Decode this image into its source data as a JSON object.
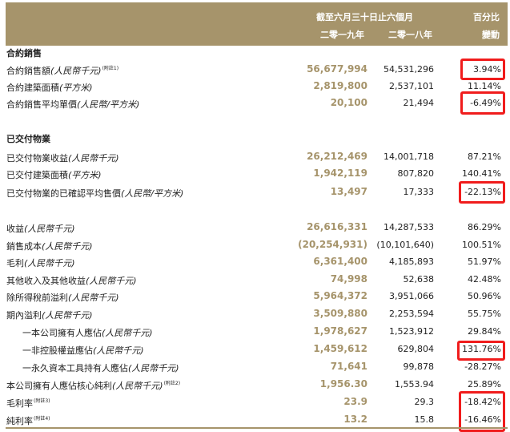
{
  "header": {
    "period": "截至六月三十日止六個月",
    "pct_top": "百分比",
    "year1": "二零一九年",
    "year2": "二零一八年",
    "pct_bottom": "變動"
  },
  "sections": [
    {
      "title": "合約銷售",
      "rows": [
        {
          "label": "合約銷售額",
          "unit": "(人民幣千元)",
          "note": "(附註1)",
          "v1": "56,677,994",
          "v2": "54,531,296",
          "pct": "3.94%"
        },
        {
          "label": "合約建築面積",
          "unit": "(平方米)",
          "note": "",
          "v1": "2,819,800",
          "v2": "2,537,101",
          "pct": "11.14%"
        },
        {
          "label": "合約銷售平均單價",
          "unit": "(人民幣/平方米)",
          "note": "",
          "v1": "20,100",
          "v2": "21,494",
          "pct": "-6.49%"
        }
      ]
    },
    {
      "title": "已交付物業",
      "rows": [
        {
          "label": "已交付物業收益",
          "unit": "(人民幣千元)",
          "note": "",
          "v1": "26,212,469",
          "v2": "14,001,718",
          "pct": "87.21%"
        },
        {
          "label": "已交付建築面積",
          "unit": "(平方米)",
          "note": "",
          "v1": "1,942,119",
          "v2": "807,820",
          "pct": "140.41%"
        },
        {
          "label": "已交付物業的已確認平均售價",
          "unit": "(人民幣/平方米)",
          "note": "",
          "v1": "13,497",
          "v2": "17,333",
          "pct": "-22.13%"
        }
      ]
    },
    {
      "title": "",
      "rows": [
        {
          "label": "收益",
          "unit": "(人民幣千元)",
          "note": "",
          "v1": "26,616,331",
          "v2": "14,287,533",
          "pct": "86.29%"
        },
        {
          "label": "銷售成本",
          "unit": "(人民幣千元)",
          "note": "",
          "v1": "(20,254,931)",
          "v2": "(10,101,640)",
          "pct": "100.51%"
        },
        {
          "label": "毛利",
          "unit": "(人民幣千元)",
          "note": "",
          "v1": "6,361,400",
          "v2": "4,185,893",
          "pct": "51.97%"
        },
        {
          "label": "其他收入及其他收益",
          "unit": "(人民幣千元)",
          "note": "",
          "v1": "74,998",
          "v2": "52,638",
          "pct": "42.48%"
        },
        {
          "label": "除所得稅前溢利",
          "unit": "(人民幣千元)",
          "note": "",
          "v1": "5,964,372",
          "v2": "3,951,066",
          "pct": "50.96%"
        },
        {
          "label": "期內溢利",
          "unit": "(人民幣千元)",
          "note": "",
          "v1": "3,509,880",
          "v2": "2,253,594",
          "pct": "55.75%"
        },
        {
          "label": "一本公司擁有人應佔",
          "unit": "(人民幣千元)",
          "note": "",
          "v1": "1,978,627",
          "v2": "1,523,912",
          "pct": "29.84%"
        },
        {
          "label": "一非控股權益應佔",
          "unit": "(人民幣千元)",
          "note": "",
          "v1": "1,459,612",
          "v2": "629,804",
          "pct": "131.76%"
        },
        {
          "label": "一永久資本工具持有人應佔",
          "unit": "(人民幣千元)",
          "note": "",
          "v1": "71,641",
          "v2": "99,878",
          "pct": "-28.27%"
        },
        {
          "label": "本公司擁有人應佔核心純利",
          "unit": "(人民幣千元)",
          "note": "(附註2)",
          "v1": "1,956.30",
          "v2": "1,553.94",
          "pct": "25.89%"
        },
        {
          "label": "毛利率",
          "unit": "",
          "note": "(附註3)",
          "v1": "23.9",
          "v2": "29.3",
          "pct": "-18.42%"
        },
        {
          "label": "純利率",
          "unit": "",
          "note": "(附註4)",
          "v1": "13.2",
          "v2": "15.8",
          "pct": "-16.46%"
        }
      ]
    }
  ],
  "colors": {
    "header_bg": "#a6946b",
    "highlight_box": "#f01c1c",
    "current_year_text": "#a6946b"
  }
}
